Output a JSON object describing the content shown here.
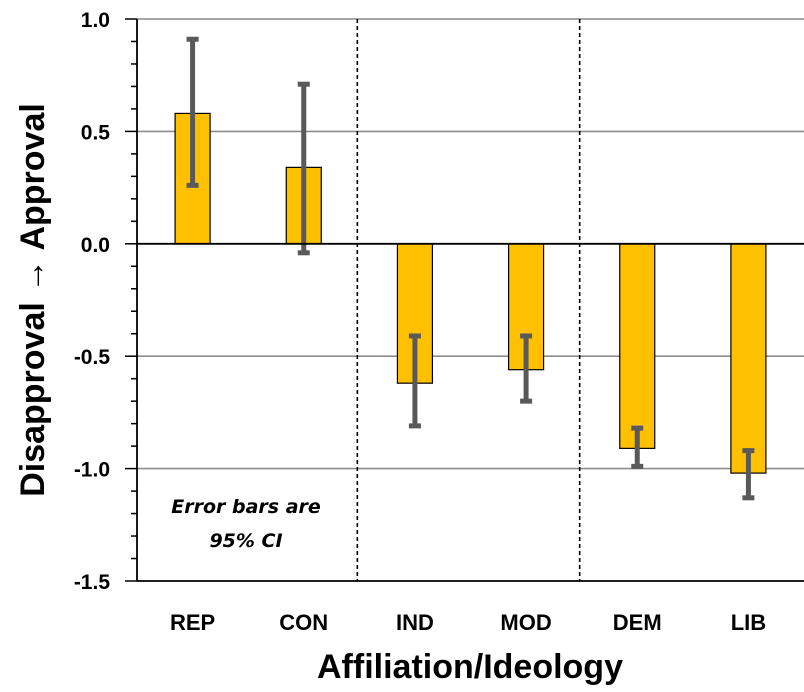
{
  "chart_data": {
    "type": "bar",
    "xlabel": "Affiliation/Ideology",
    "ylabel": "Disapproval → Approval",
    "ylim": [
      -1.5,
      1.0
    ],
    "yticks": [
      "1.0",
      "0.5",
      "0.0",
      "-0.5",
      "-1.0",
      "-1.5"
    ],
    "ytick_values": [
      1.0,
      0.5,
      0.0,
      -0.5,
      -1.0,
      -1.5
    ],
    "grid": "horizontal",
    "categories": [
      "REP",
      "CON",
      "IND",
      "MOD",
      "DEM",
      "LIB"
    ],
    "values": [
      0.58,
      0.34,
      -0.62,
      -0.56,
      -0.91,
      -1.02
    ],
    "ci_low": [
      0.26,
      -0.04,
      -0.81,
      -0.7,
      -0.99,
      -1.13
    ],
    "ci_high": [
      0.91,
      0.71,
      -0.41,
      -0.41,
      -0.82,
      -0.92
    ],
    "group_separators_after": [
      1,
      3
    ],
    "bar_color": "#FFC000",
    "error_bar_color": "#595959",
    "annotation": [
      "Error bars are",
      "95% CI"
    ]
  }
}
